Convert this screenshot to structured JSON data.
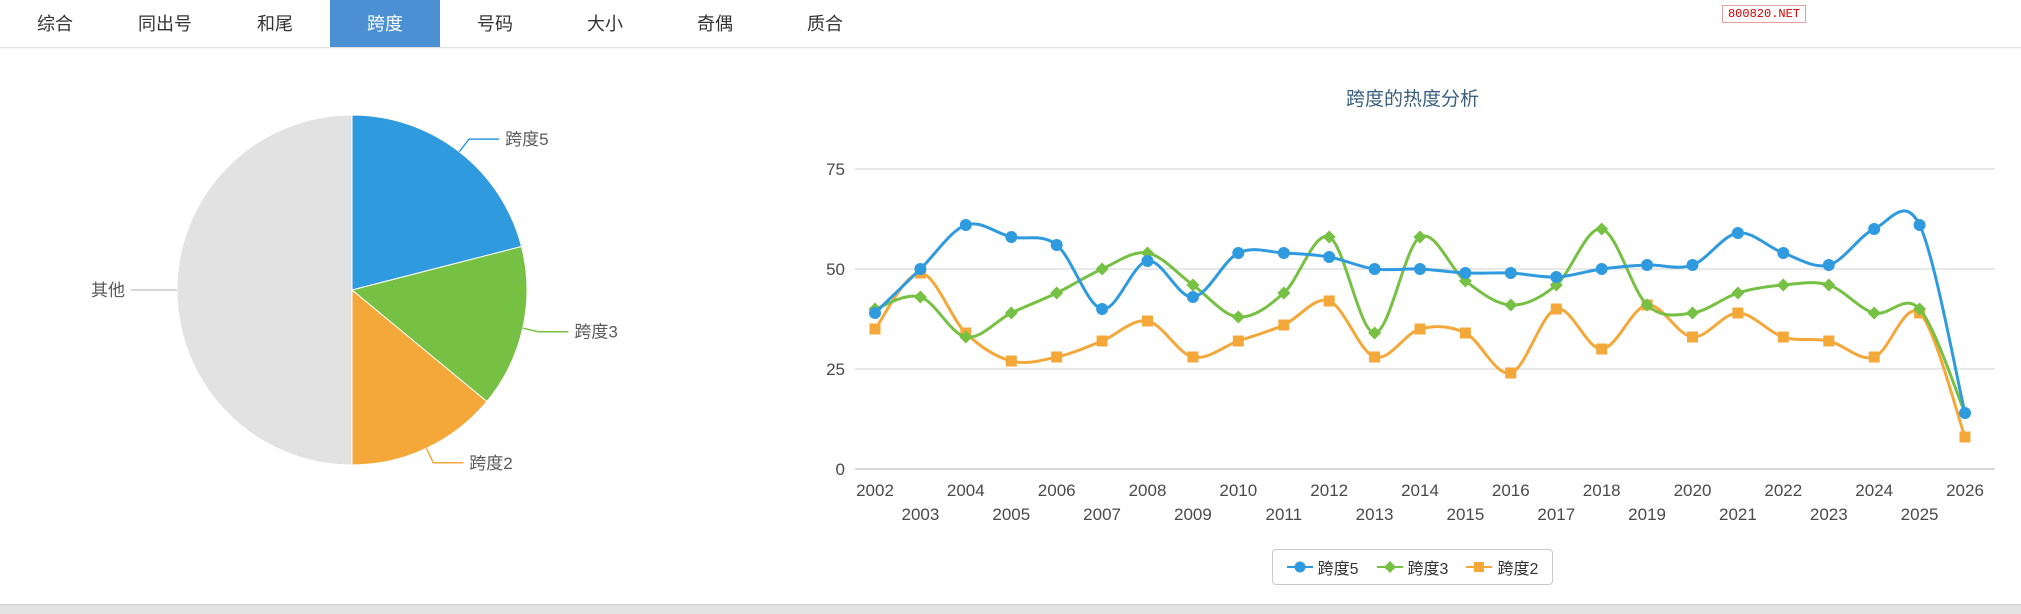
{
  "nav": {
    "tabs": [
      {
        "label": "综合",
        "active": false
      },
      {
        "label": "同出号",
        "active": false
      },
      {
        "label": "和尾",
        "active": false
      },
      {
        "label": "跨度",
        "active": true
      },
      {
        "label": "号码",
        "active": false
      },
      {
        "label": "大小",
        "active": false
      },
      {
        "label": "奇偶",
        "active": false
      },
      {
        "label": "质合",
        "active": false
      }
    ],
    "watermark": "800820.NET"
  },
  "colors": {
    "blue": "#2f9bde",
    "green": "#76c043",
    "orange": "#f4a83a",
    "gray": "#e2e2e2",
    "active_tab": "#4a90d2",
    "title": "#3a5f7f",
    "grid": "#d0d0d0"
  },
  "chart_data": [
    {
      "type": "pie",
      "title": "",
      "legend": false,
      "start_angle_deg": -90,
      "slices": [
        {
          "label": "跨度5",
          "value": 21,
          "color_key": "blue"
        },
        {
          "label": "跨度3",
          "value": 15,
          "color_key": "green"
        },
        {
          "label": "跨度2",
          "value": 14,
          "color_key": "orange"
        },
        {
          "label": "其他",
          "value": 50,
          "color_key": "gray"
        }
      ]
    },
    {
      "type": "line",
      "title": "跨度的热度分析",
      "xlabel": "",
      "ylabel": "",
      "ylim": [
        0,
        80
      ],
      "yticks": [
        0,
        25,
        50,
        75
      ],
      "grid": true,
      "legend_position": "bottom",
      "x": [
        2002,
        2003,
        2004,
        2005,
        2006,
        2007,
        2008,
        2009,
        2010,
        2011,
        2012,
        2013,
        2014,
        2015,
        2016,
        2017,
        2018,
        2019,
        2020,
        2021,
        2022,
        2023,
        2024,
        2025,
        2026
      ],
      "series": [
        {
          "name": "跨度5",
          "marker": "circle",
          "color_key": "blue",
          "values": [
            39,
            50,
            61,
            58,
            56,
            40,
            52,
            43,
            54,
            54,
            53,
            50,
            50,
            49,
            49,
            48,
            50,
            51,
            51,
            59,
            54,
            51,
            60,
            61,
            14
          ]
        },
        {
          "name": "跨度3",
          "marker": "diamond",
          "color_key": "green",
          "values": [
            40,
            43,
            33,
            39,
            44,
            50,
            54,
            46,
            38,
            44,
            58,
            34,
            58,
            47,
            41,
            46,
            60,
            41,
            39,
            44,
            46,
            46,
            39,
            40,
            14
          ]
        },
        {
          "name": "跨度2",
          "marker": "square",
          "color_key": "orange",
          "values": [
            35,
            49,
            34,
            27,
            28,
            32,
            37,
            28,
            32,
            36,
            42,
            28,
            35,
            34,
            24,
            40,
            30,
            41,
            33,
            39,
            33,
            32,
            28,
            39,
            8
          ]
        }
      ]
    }
  ]
}
